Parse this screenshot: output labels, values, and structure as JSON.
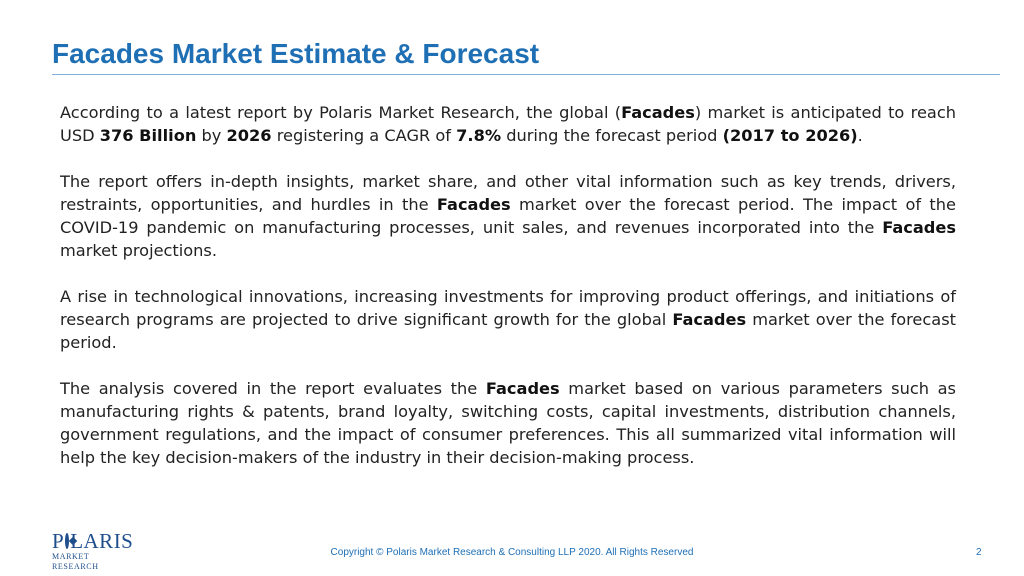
{
  "slide": {
    "title": "Facades Market Estimate & Forecast",
    "paragraphs": [
      {
        "segments": [
          {
            "text": "According to a latest report by Polaris Market Research, the global (",
            "bold": false
          },
          {
            "text": "Facades",
            "bold": true
          },
          {
            "text": ") market is anticipated to reach USD ",
            "bold": false
          },
          {
            "text": "376 Billion",
            "bold": true
          },
          {
            "text": " by ",
            "bold": false
          },
          {
            "text": "2026",
            "bold": true
          },
          {
            "text": "  registering a CAGR of ",
            "bold": false
          },
          {
            "text": "7.8%",
            "bold": true
          },
          {
            "text": " during the  forecast period ",
            "bold": false
          },
          {
            "text": "(2017 to 2026)",
            "bold": true
          },
          {
            "text": ".",
            "bold": false
          }
        ]
      },
      {
        "segments": [
          {
            "text": "The report offers in-depth insights, market share, and other vital information such as key trends, drivers, restraints, opportunities, and hurdles in the ",
            "bold": false
          },
          {
            "text": "Facades",
            "bold": true
          },
          {
            "text": " market over the forecast period. The impact of the COVID-19 pandemic on manufacturing processes, unit sales, and revenues incorporated into the ",
            "bold": false
          },
          {
            "text": "Facades",
            "bold": true
          },
          {
            "text": " market projections.",
            "bold": false
          }
        ]
      },
      {
        "segments": [
          {
            "text": "A rise in technological innovations, increasing investments for improving product offerings, and initiations of research programs are projected to drive significant growth for the global ",
            "bold": false
          },
          {
            "text": "Facades",
            "bold": true
          },
          {
            "text": " market over the forecast period.",
            "bold": false
          }
        ]
      },
      {
        "segments": [
          {
            "text": "The analysis covered in the report evaluates the ",
            "bold": false
          },
          {
            "text": "Facades",
            "bold": true
          },
          {
            "text": " market based on various parameters such as manufacturing rights & patents, brand loyalty, switching costs,  capital investments, distribution channels, government regulations, and the impact of consumer preferences. This all summarized vital information will help the key decision-makers of the industry in their decision-making process.",
            "bold": false
          }
        ]
      }
    ],
    "logo": {
      "word_left": "P",
      "word_right": "LARIS",
      "subtitle": "MARKET RESEARCH"
    },
    "footer": "Copyright © Polaris Market Research & Consulting LLP 2020. All Rights Reserved",
    "page_number": "2"
  },
  "colors": {
    "title": "#1f6fb5",
    "rule": "#7fb0dc",
    "body_text": "#222222",
    "logo": "#1f4e8c"
  }
}
